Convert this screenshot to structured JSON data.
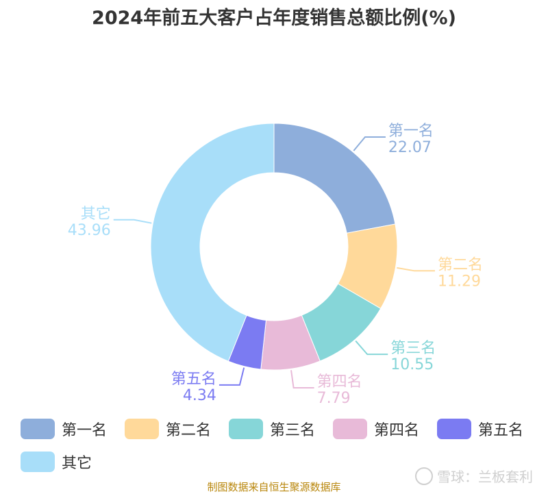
{
  "title": "2024年前五大客户占年度销售总额比例(%)",
  "chart_data": {
    "type": "pie",
    "variant": "donut",
    "title": "2024年前五大客户占年度销售总额比例(%)",
    "slices": [
      {
        "name": "第一名",
        "value": 22.07,
        "color": "#8eaedb"
      },
      {
        "name": "第二名",
        "value": 11.29,
        "color": "#ffd99a"
      },
      {
        "name": "第三名",
        "value": 10.55,
        "color": "#86d6d8"
      },
      {
        "name": "第四名",
        "value": 7.79,
        "color": "#e8bad8"
      },
      {
        "name": "第五名",
        "value": 4.34,
        "color": "#7b7bf2"
      },
      {
        "name": "其它",
        "value": 43.96,
        "color": "#a8def9"
      }
    ],
    "legend_position": "bottom"
  },
  "source": "制图数据来自恒生聚源数据库",
  "watermark": "雪球：兰板套利",
  "watermark_icon": "snowball-logo-icon"
}
